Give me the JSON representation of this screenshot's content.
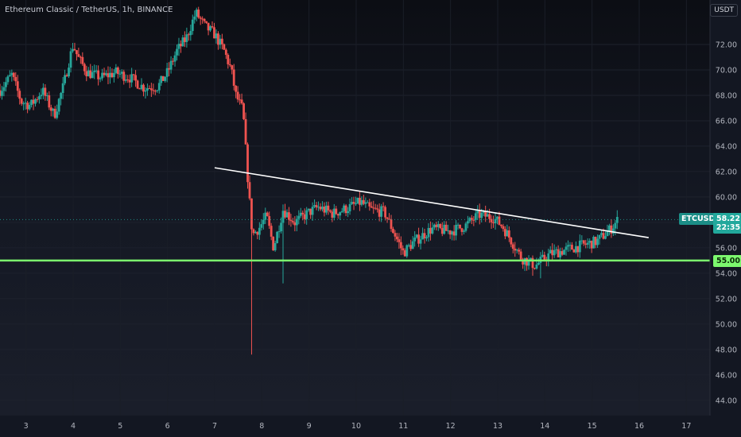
{
  "header": {
    "title": "Ethereum Classic / TetherUS, 1h, BINANCE",
    "currency": "USDT"
  },
  "chart_data": {
    "type": "candlestick",
    "title": "Ethereum Classic / TetherUS, 1h, BINANCE",
    "symbol": "ETCUSDT",
    "exchange": "BINANCE",
    "interval": "1h",
    "currency": "USDT",
    "x_ticks": [
      "3",
      "4",
      "5",
      "6",
      "7",
      "8",
      "9",
      "10",
      "11",
      "12",
      "13",
      "14",
      "15",
      "16",
      "17"
    ],
    "y_ticks": [
      "44.00",
      "46.00",
      "48.00",
      "50.00",
      "52.00",
      "54.00",
      "56.00",
      "58.00",
      "60.00",
      "62.00",
      "64.00",
      "66.00",
      "68.00",
      "70.00",
      "72.00"
    ],
    "ylim": [
      42.8,
      75.5
    ],
    "xlim": [
      2.45,
      17.5
    ],
    "last_price": "58.22",
    "countdown": "22:35",
    "support_level": "55.00",
    "colors": {
      "up": "#26a69a",
      "down": "#ef5350",
      "support": "#7cf86e",
      "trendline": "#ffffff",
      "axis_text": "#b2b5be"
    },
    "annotations": [
      {
        "type": "horizontal_line",
        "price": 55.0
      },
      {
        "type": "trendline",
        "points": [
          [
            7.0,
            62.3
          ],
          [
            16.2,
            56.8
          ]
        ]
      }
    ],
    "path": [
      [
        2.45,
        68.4
      ],
      [
        2.7,
        69.6
      ],
      [
        2.9,
        67.5
      ],
      [
        3.1,
        67.2
      ],
      [
        3.35,
        68.4
      ],
      [
        3.6,
        66.4
      ],
      [
        3.8,
        68.8
      ],
      [
        3.9,
        70.5
      ],
      [
        4.0,
        72.0
      ],
      [
        4.1,
        71.0
      ],
      [
        4.3,
        69.8
      ],
      [
        4.6,
        69.4
      ],
      [
        4.9,
        69.8
      ],
      [
        5.2,
        69.4
      ],
      [
        5.5,
        68.6
      ],
      [
        5.8,
        68.7
      ],
      [
        6.0,
        69.8
      ],
      [
        6.2,
        71.5
      ],
      [
        6.4,
        72.5
      ],
      [
        6.6,
        74.5
      ],
      [
        6.8,
        73.4
      ],
      [
        7.0,
        72.8
      ],
      [
        7.2,
        71.5
      ],
      [
        7.35,
        70.0
      ],
      [
        7.45,
        68.0
      ],
      [
        7.6,
        66.8
      ],
      [
        7.72,
        60.5
      ],
      [
        7.8,
        57.0
      ],
      [
        7.95,
        57.6
      ],
      [
        8.1,
        58.5
      ],
      [
        8.25,
        56.0
      ],
      [
        8.45,
        59.0
      ],
      [
        8.7,
        58.0
      ],
      [
        9.0,
        58.8
      ],
      [
        9.2,
        59.2
      ],
      [
        9.5,
        58.7
      ],
      [
        9.8,
        59.1
      ],
      [
        10.1,
        59.6
      ],
      [
        10.3,
        59.0
      ],
      [
        10.6,
        58.8
      ],
      [
        10.8,
        57.2
      ],
      [
        11.0,
        55.6
      ],
      [
        11.2,
        56.4
      ],
      [
        11.6,
        57.5
      ],
      [
        12.0,
        57.3
      ],
      [
        12.3,
        57.7
      ],
      [
        12.6,
        58.6
      ],
      [
        12.9,
        58.4
      ],
      [
        13.1,
        57.7
      ],
      [
        13.3,
        56.5
      ],
      [
        13.5,
        55.2
      ],
      [
        13.8,
        54.6
      ],
      [
        14.1,
        55.5
      ],
      [
        14.5,
        55.9
      ],
      [
        14.8,
        56.2
      ],
      [
        15.1,
        56.5
      ],
      [
        15.4,
        57.5
      ],
      [
        15.55,
        58.22
      ]
    ]
  }
}
